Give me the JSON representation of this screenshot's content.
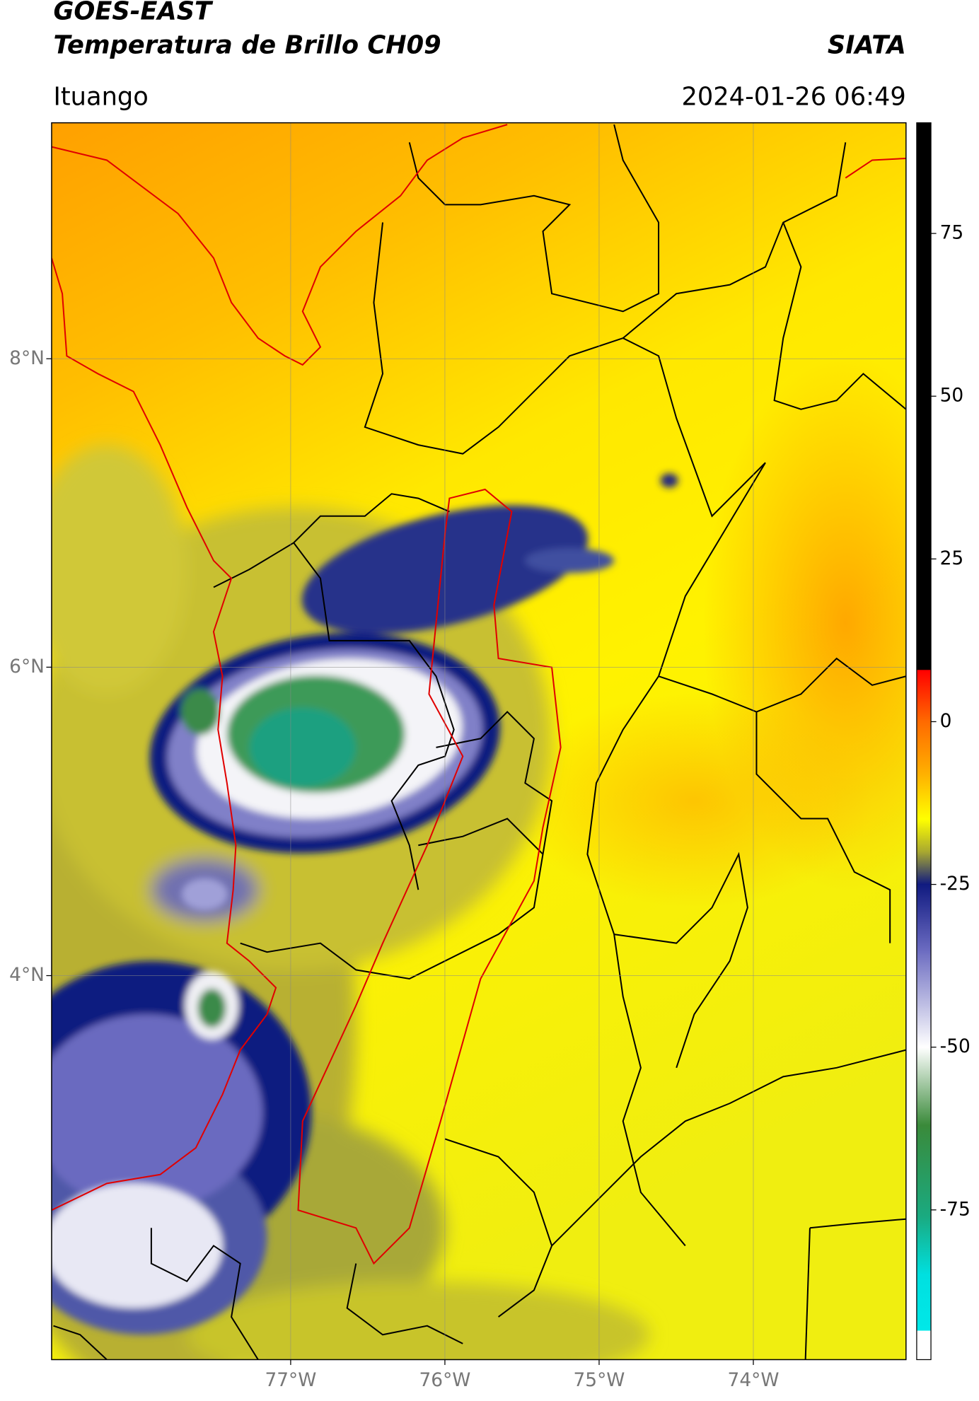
{
  "chart_data": {
    "type": "map",
    "title": "GOES-EAST",
    "subtitle": "Temperatura de Brillo CH09",
    "source": "SIATA",
    "location": "Ituango",
    "datetime": "2024-01-26 06:49",
    "xlim": [
      -78.55,
      -73.01
    ],
    "ylim": [
      1.51,
      9.53
    ],
    "xticks": [
      {
        "value": -77,
        "label": "77°W"
      },
      {
        "value": -76,
        "label": "76°W"
      },
      {
        "value": -75,
        "label": "75°W"
      },
      {
        "value": -74,
        "label": "74°W"
      }
    ],
    "yticks": [
      {
        "value": 8,
        "label": "8°N"
      },
      {
        "value": 6,
        "label": "6°N"
      },
      {
        "value": 4,
        "label": "4°N"
      }
    ],
    "grid": true,
    "colorbar": {
      "lim": [
        -98,
        92
      ],
      "ticks": [
        75,
        50,
        25,
        0,
        -25,
        -50,
        -75
      ],
      "colormap": [
        {
          "value": 92,
          "color": "#000000"
        },
        {
          "value": 8,
          "color": "#000000"
        },
        {
          "value": 7.9,
          "color": "#ff0000"
        },
        {
          "value": 0,
          "color": "#ff6a00"
        },
        {
          "value": -8,
          "color": "#ffb000"
        },
        {
          "value": -15,
          "color": "#ffff00"
        },
        {
          "value": -20,
          "color": "#a8a830"
        },
        {
          "value": -25,
          "color": "#101a80"
        },
        {
          "value": -35,
          "color": "#6a6ac0"
        },
        {
          "value": -50,
          "color": "#ffffff"
        },
        {
          "value": -62,
          "color": "#3a8a3a"
        },
        {
          "value": -76,
          "color": "#1aaa80"
        },
        {
          "value": -85,
          "color": "#00e0e0"
        },
        {
          "value": -93.5,
          "color": "#00e8e8"
        },
        {
          "value": -93.6,
          "color": "#ffffff"
        },
        {
          "value": -98,
          "color": "#ffffff"
        }
      ]
    }
  }
}
